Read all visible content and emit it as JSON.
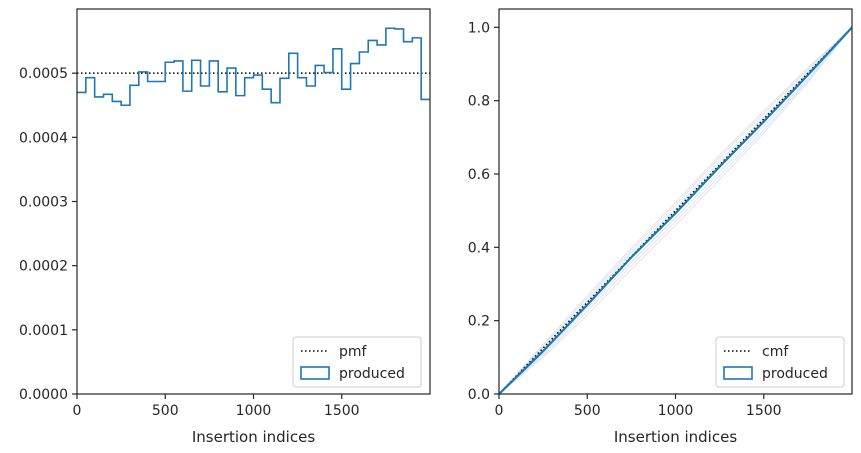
{
  "chart_data": [
    {
      "type": "line",
      "xlabel": "Insertion indices",
      "xlim": [
        0,
        2000
      ],
      "ylim": [
        0,
        0.0006
      ],
      "x_ticks": [
        0,
        500,
        1000,
        1500
      ],
      "x_tick_labels": [
        "0",
        "500",
        "1000",
        "1500"
      ],
      "y_ticks": [
        0,
        0.0001,
        0.0002,
        0.0003,
        0.0004,
        0.0005
      ],
      "y_tick_labels": [
        "0.0000",
        "0.0001",
        "0.0002",
        "0.0003",
        "0.0004",
        "0.0005"
      ],
      "legend": {
        "position": "lower-right",
        "entries": [
          {
            "label": "pmf",
            "style": "dotted-line"
          },
          {
            "label": "produced",
            "style": "box"
          }
        ]
      },
      "series": [
        {
          "name": "pmf",
          "style": "dotted",
          "color": "#000000",
          "x": [
            0,
            2000
          ],
          "y": [
            0.0005,
            0.0005
          ]
        },
        {
          "name": "produced",
          "style": "step-histogram",
          "color": "#1f77b4",
          "bin_edges": [
            0,
            50,
            100,
            150,
            200,
            250,
            300,
            350,
            400,
            450,
            500,
            550,
            600,
            650,
            700,
            750,
            800,
            850,
            900,
            950,
            1000,
            1050,
            1100,
            1150,
            1200,
            1250,
            1300,
            1350,
            1400,
            1450,
            1500,
            1550,
            1600,
            1650,
            1700,
            1750,
            1800,
            1850,
            1900,
            1950,
            2000
          ],
          "values": [
            0.00047,
            0.000493,
            0.000463,
            0.000467,
            0.000456,
            0.00045,
            0.000481,
            0.000502,
            0.000487,
            0.000487,
            0.000517,
            0.000519,
            0.000472,
            0.00052,
            0.00048,
            0.000519,
            0.000471,
            0.000508,
            0.000465,
            0.000493,
            0.000497,
            0.000475,
            0.000454,
            0.000492,
            0.000531,
            0.000493,
            0.00048,
            0.000512,
            0.000501,
            0.000538,
            0.000475,
            0.000515,
            0.000533,
            0.000551,
            0.000544,
            0.00057,
            0.000569,
            0.000549,
            0.000555,
            0.000459
          ]
        }
      ]
    },
    {
      "type": "line",
      "xlabel": "Insertion indices",
      "xlim": [
        0,
        2000
      ],
      "ylim": [
        0,
        1.05
      ],
      "x_ticks": [
        0,
        500,
        1000,
        1500
      ],
      "x_tick_labels": [
        "0",
        "500",
        "1000",
        "1500"
      ],
      "y_ticks": [
        0,
        0.2,
        0.4,
        0.6,
        0.8,
        1.0
      ],
      "y_tick_labels": [
        "0.0",
        "0.2",
        "0.4",
        "0.6",
        "0.8",
        "1.0"
      ],
      "legend": {
        "position": "lower-right",
        "entries": [
          {
            "label": "cmf",
            "style": "dotted-line"
          },
          {
            "label": "produced",
            "style": "box"
          }
        ]
      },
      "series": [
        {
          "name": "cmf",
          "style": "dotted",
          "color": "#000000",
          "x": [
            0,
            2000
          ],
          "y": [
            0,
            1
          ]
        },
        {
          "name": "produced",
          "style": "solid",
          "color": "#1f77b4",
          "x": [
            0,
            250,
            500,
            750,
            1000,
            1250,
            1500,
            1750,
            2000
          ],
          "y": [
            0,
            0.117,
            0.243,
            0.373,
            0.493,
            0.62,
            0.743,
            0.87,
            1.0
          ]
        }
      ],
      "envelope": {
        "color": "#dde5ee",
        "x": [
          0,
          250,
          500,
          750,
          1000,
          1250,
          1500,
          1750,
          2000
        ],
        "lines": [
          [
            0,
            0.105,
            0.225,
            0.35,
            0.47,
            0.595,
            0.72,
            0.855,
            1.0
          ],
          [
            0,
            0.13,
            0.262,
            0.392,
            0.515,
            0.645,
            0.765,
            0.885,
            1.0
          ],
          [
            0,
            0.11,
            0.235,
            0.36,
            0.48,
            0.605,
            0.73,
            0.86,
            1.0
          ],
          [
            0,
            0.125,
            0.255,
            0.385,
            0.505,
            0.635,
            0.755,
            0.878,
            1.0
          ],
          [
            0,
            0.1,
            0.215,
            0.34,
            0.46,
            0.585,
            0.712,
            0.85,
            1.0
          ],
          [
            0,
            0.135,
            0.268,
            0.398,
            0.522,
            0.652,
            0.772,
            0.89,
            1.0
          ]
        ]
      }
    }
  ],
  "colors": {
    "produced": "#1f77b4",
    "reference": "#000000",
    "envelope": "#dde5ee",
    "axes": "#262626"
  }
}
